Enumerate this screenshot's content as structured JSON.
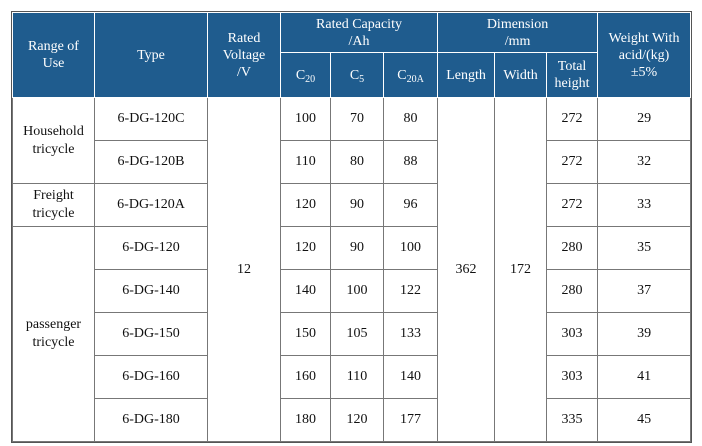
{
  "table": {
    "header": {
      "range": [
        "Range of",
        "Use"
      ],
      "type": "Type",
      "voltage": [
        "Rated",
        "Voltage",
        "/V"
      ],
      "capacity": {
        "title": "Rated Capacity",
        "unit": "/Ah",
        "columns": [
          {
            "base": "C",
            "sub": "20"
          },
          {
            "base": "C",
            "sub": "5"
          },
          {
            "base": "C",
            "sub": "20A"
          }
        ]
      },
      "dimension": {
        "title": "Dimension",
        "unit": "/mm",
        "columns": [
          [
            "Length"
          ],
          [
            "Width"
          ],
          [
            "Total",
            "height"
          ]
        ]
      },
      "weight": [
        "Weight With",
        "acid/(kg)",
        "±5%"
      ]
    },
    "voltage": 12,
    "length": 362,
    "width": 172,
    "groups": [
      {
        "range": [
          "Household",
          "tricycle"
        ],
        "rows": [
          {
            "type": "6-DG-120C",
            "c20": 100,
            "c5": 70,
            "c20a": 80,
            "total_height": 272,
            "weight": 29
          },
          {
            "type": "6-DG-120B",
            "c20": 110,
            "c5": 80,
            "c20a": 88,
            "total_height": 272,
            "weight": 32
          }
        ]
      },
      {
        "range": [
          "Freight",
          "tricycle"
        ],
        "rows": [
          {
            "type": "6-DG-120A",
            "c20": 120,
            "c5": 90,
            "c20a": 96,
            "total_height": 272,
            "weight": 33
          }
        ]
      },
      {
        "range": [
          "passenger",
          "tricycle"
        ],
        "rows": [
          {
            "type": "6-DG-120",
            "c20": 120,
            "c5": 90,
            "c20a": 100,
            "total_height": 280,
            "weight": 35
          },
          {
            "type": "6-DG-140",
            "c20": 140,
            "c5": 100,
            "c20a": 122,
            "total_height": 280,
            "weight": 37
          },
          {
            "type": "6-DG-150",
            "c20": 150,
            "c5": 105,
            "c20a": 133,
            "total_height": 303,
            "weight": 39
          },
          {
            "type": "6-DG-160",
            "c20": 160,
            "c5": 110,
            "c20a": 140,
            "total_height": 303,
            "weight": 41
          },
          {
            "type": "6-DG-180",
            "c20": 180,
            "c5": 120,
            "c20a": 177,
            "total_height": 335,
            "weight": 45
          }
        ]
      }
    ]
  }
}
